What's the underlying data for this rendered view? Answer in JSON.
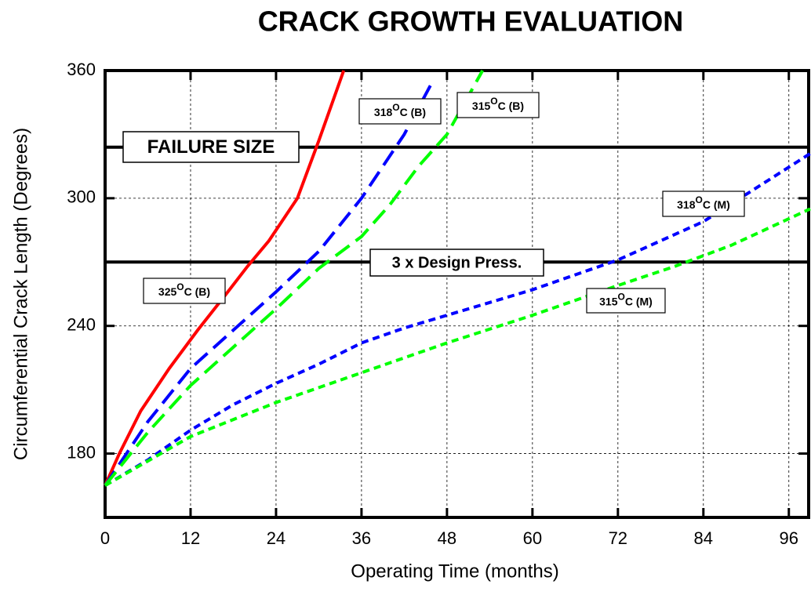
{
  "chart_data": {
    "type": "line",
    "title": "CRACK GROWTH EVALUATION",
    "x_label": "Operating Time (months)",
    "y_label": "Circumferential Crack Length (Degrees)",
    "xlim": [
      0,
      99
    ],
    "ylim": [
      150,
      360
    ],
    "xticks": [
      0,
      12,
      24,
      36,
      48,
      60,
      72,
      84,
      96
    ],
    "yticks": [
      180,
      240,
      300,
      360
    ],
    "grid": true,
    "series": [
      {
        "name": "325OC (B)",
        "color": "#ff0000",
        "dash": "solid",
        "x": [
          0,
          2,
          5,
          9,
          13,
          17,
          20,
          23,
          27,
          30,
          33.5
        ],
        "values": [
          165,
          180,
          200,
          220,
          238,
          255,
          268,
          280,
          300,
          327,
          360
        ]
      },
      {
        "name": "318OC (B)",
        "color": "#0000ff",
        "dash": "long",
        "x": [
          0,
          6,
          12,
          18,
          24,
          30,
          36,
          42,
          46
        ],
        "values": [
          165,
          195,
          220,
          238,
          256,
          275,
          300,
          330,
          355
        ]
      },
      {
        "name": "315OC (B)",
        "color": "#00ff00",
        "dash": "long",
        "x": [
          0,
          6,
          12,
          18,
          24,
          30,
          36,
          40,
          44,
          48,
          53
        ],
        "values": [
          165,
          190,
          212,
          230,
          248,
          267,
          282,
          297,
          315,
          330,
          360
        ]
      },
      {
        "name": "318OC (M)",
        "color": "#0000ff",
        "dash": "short",
        "x": [
          0,
          6,
          12,
          18,
          24,
          30,
          36,
          42,
          48,
          60,
          72,
          84,
          99
        ],
        "values": [
          165,
          177,
          191,
          203,
          213,
          222,
          232,
          239,
          245,
          257,
          271,
          289,
          321
        ]
      },
      {
        "name": "315OC (M)",
        "color": "#00ff00",
        "dash": "short",
        "x": [
          0,
          12,
          24,
          36,
          48,
          60,
          72,
          80,
          88,
          99
        ],
        "values": [
          165,
          188,
          204,
          218,
          232,
          245,
          259,
          268,
          278,
          295
        ]
      }
    ],
    "hlines": [
      {
        "label": "FAILURE SIZE",
        "value": 324
      },
      {
        "label": "3 x Design Press.",
        "value": 270
      }
    ],
    "annotations": [
      {
        "temp": "325",
        "sup": "O",
        "rest": "C (B)"
      },
      {
        "temp": "318",
        "sup": "O",
        "rest": "C (B)"
      },
      {
        "temp": "315",
        "sup": "O",
        "rest": "C (B)"
      },
      {
        "temp": "318",
        "sup": "O",
        "rest": "C (M)"
      },
      {
        "temp": "315",
        "sup": "O",
        "rest": "C (M)"
      }
    ]
  }
}
